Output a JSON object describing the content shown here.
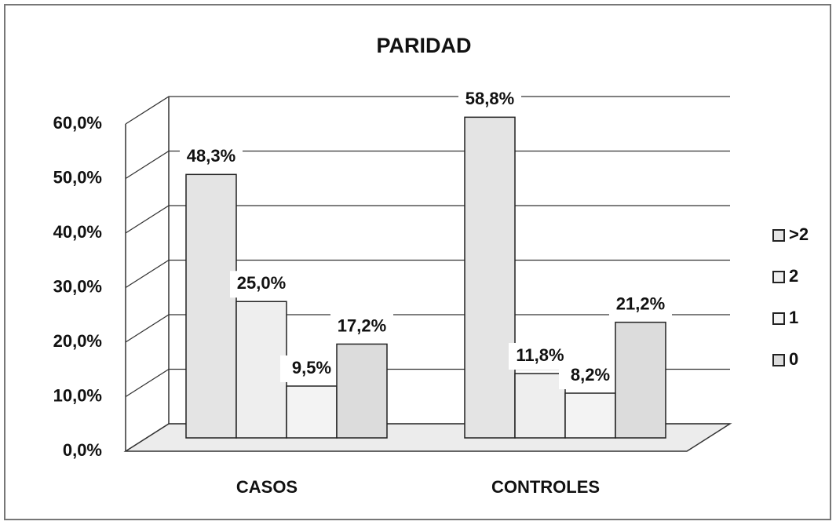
{
  "chart_data": {
    "type": "bar",
    "title": "PARIDAD",
    "categories": [
      "CASOS",
      "CONTROLES"
    ],
    "series": [
      {
        "name": ">2",
        "color": "#e4e4e4",
        "values": [
          48.3,
          58.8
        ],
        "value_labels": [
          "48,3%",
          "58,8%"
        ]
      },
      {
        "name": "2",
        "color": "#eeeeee",
        "values": [
          25.0,
          11.8
        ],
        "value_labels": [
          "25,0%",
          "11,8%"
        ]
      },
      {
        "name": "1",
        "color": "#f3f3f3",
        "values": [
          9.5,
          8.2
        ],
        "value_labels": [
          "9,5%",
          "8,2%"
        ]
      },
      {
        "name": "0",
        "color": "#dcdcdc",
        "values": [
          17.2,
          21.2
        ],
        "value_labels": [
          "17,2%",
          "21,2%"
        ]
      }
    ],
    "ylim": [
      0,
      60
    ],
    "yticks": [
      {
        "value": 0,
        "label": "0,0%"
      },
      {
        "value": 10,
        "label": "10,0%"
      },
      {
        "value": 20,
        "label": "20,0%"
      },
      {
        "value": 30,
        "label": "30,0%"
      },
      {
        "value": 40,
        "label": "40,0%"
      },
      {
        "value": 50,
        "label": "50,0%"
      },
      {
        "value": 60,
        "label": "60,0%"
      }
    ],
    "grid": true,
    "legend": "right"
  }
}
